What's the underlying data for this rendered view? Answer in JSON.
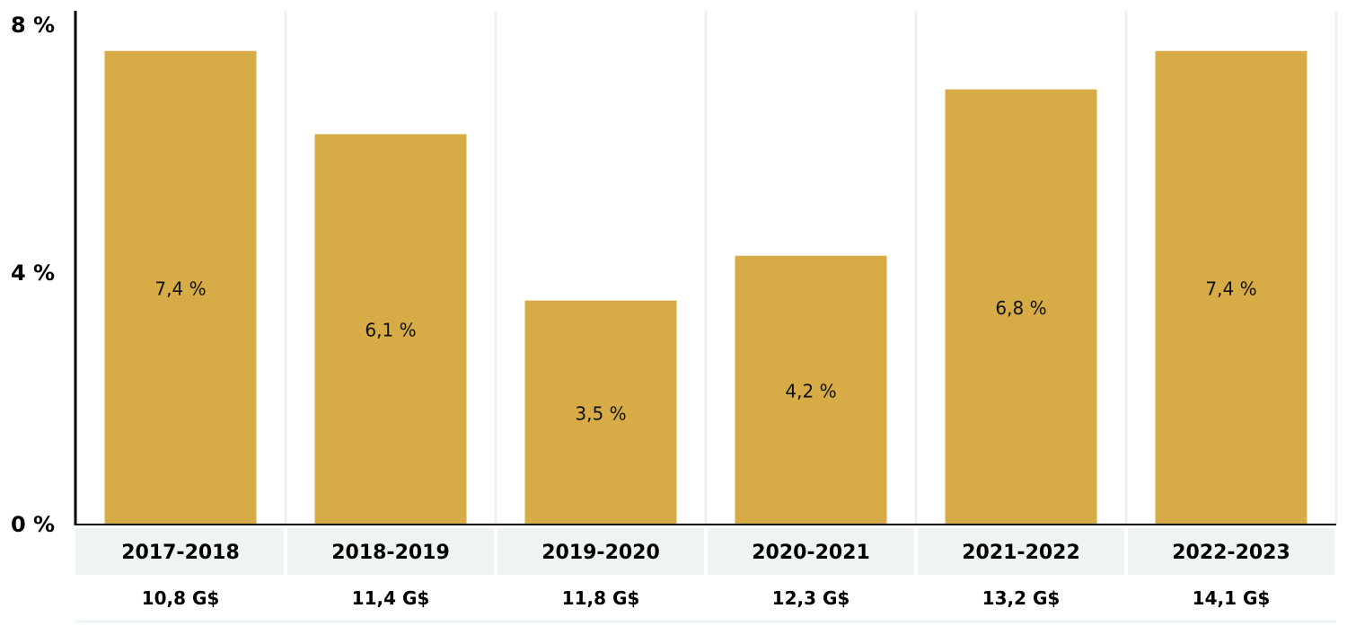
{
  "chart_data": {
    "type": "bar",
    "categories": [
      "2017-2018",
      "2018-2019",
      "2019-2020",
      "2020-2021",
      "2021-2022",
      "2022-2023"
    ],
    "values": [
      7.4,
      6.1,
      3.5,
      4.2,
      6.8,
      7.4
    ],
    "data_labels": [
      "7,4 %",
      "6,1 %",
      "3,5 %",
      "4,2 %",
      "6,8 %",
      "7,4 %"
    ],
    "secondary_labels": [
      "10,8 G$",
      "11,4 G$",
      "11,8 G$",
      "12,3 G$",
      "13,2 G$",
      "14,1 G$"
    ],
    "yticks": [
      {
        "value": 0,
        "label": "0 %"
      },
      {
        "value": 4,
        "label": "4 %"
      },
      {
        "value": 8,
        "label": "8 %"
      }
    ],
    "ylim": [
      0,
      8
    ],
    "title": "",
    "xlabel": "",
    "ylabel": "",
    "grid": "vertical separators",
    "colors": {
      "bar": "#d7ab45",
      "category_band": "#eef4f4",
      "separator": "#eef0f2",
      "axis": "#000000"
    }
  }
}
